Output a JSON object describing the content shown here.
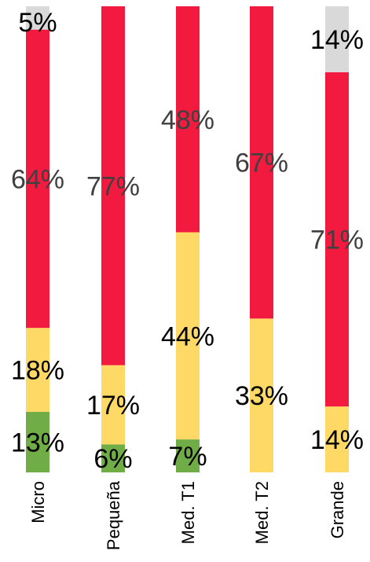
{
  "chart_data": {
    "type": "bar",
    "stacked": true,
    "percent_stacked": true,
    "title": "",
    "xlabel": "",
    "ylabel": "",
    "ylim": [
      0,
      100
    ],
    "grid": false,
    "legend": "none",
    "categories": [
      "Micro",
      "Pequeña",
      "Med. T1",
      "Med. T2",
      "Grande"
    ],
    "series": [
      {
        "color": "#70ad47",
        "values": [
          13,
          6,
          7,
          0,
          0
        ],
        "labels": [
          "13%",
          "6%",
          "7%",
          "",
          ""
        ]
      },
      {
        "color": "#ffd966",
        "values": [
          18,
          17,
          44,
          33,
          14
        ],
        "labels": [
          "18%",
          "17%",
          "44%",
          "33%",
          "14%"
        ]
      },
      {
        "color": "#f21b3f",
        "values": [
          64,
          77,
          48,
          67,
          71
        ],
        "labels": [
          "64%",
          "77%",
          "48%",
          "67%",
          "71%"
        ]
      },
      {
        "color": "#d9d9d9",
        "values": [
          5,
          0,
          0,
          0,
          14
        ],
        "labels": [
          "5%",
          "",
          "",
          "",
          "14%"
        ]
      }
    ],
    "label_color": "#404040"
  }
}
